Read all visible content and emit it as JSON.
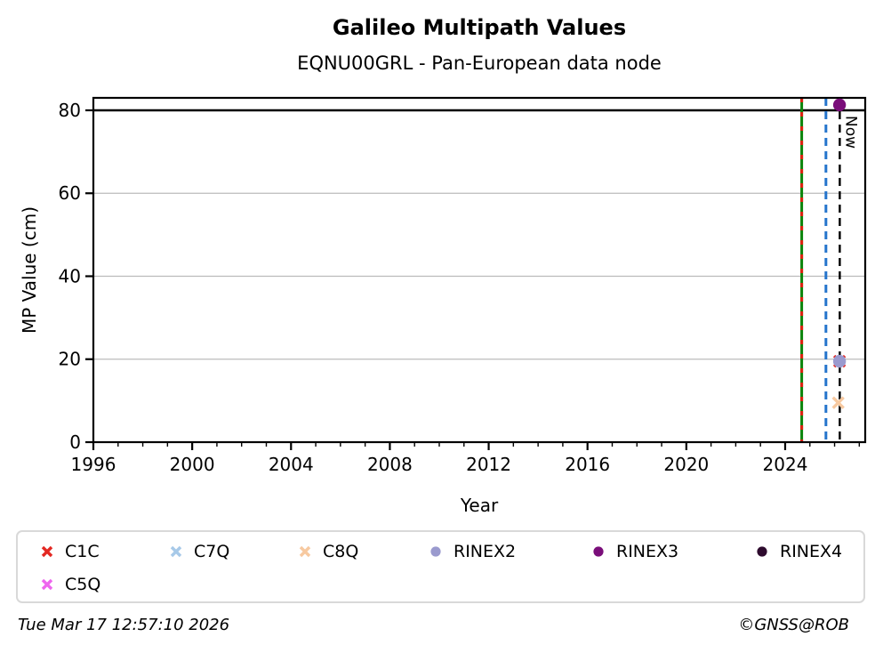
{
  "title": "Galileo Multipath Values",
  "subtitle": "EQNU00GRL - Pan-European data node",
  "footer": {
    "timestamp": "Tue Mar 17 12:57:10 2026",
    "copyright": "©GNSS@ROB"
  },
  "chart_data": {
    "type": "scatter",
    "title": "Galileo Multipath Values",
    "subtitle": "EQNU00GRL - Pan-European data node",
    "xlabel": "Year",
    "ylabel": "MP Value (cm)",
    "xlim": [
      1996,
      2027.24
    ],
    "ylim": [
      0,
      83
    ],
    "xticks_major": [
      1996,
      2000,
      2004,
      2008,
      2012,
      2016,
      2020,
      2024
    ],
    "xticks_minor_step": 1,
    "yticks": [
      0,
      20,
      40,
      60,
      80
    ],
    "grid": true,
    "grid_color": "#bbbbbb",
    "hlines": [
      {
        "y": 80,
        "color": "#000000",
        "style": "solid"
      }
    ],
    "vlines": [
      {
        "x": 2024.67,
        "color": "#0a840a",
        "overlay_color": "#e02010",
        "style": "solid-with-dashes",
        "label": ""
      },
      {
        "x": 2025.65,
        "color": "#2474cc",
        "overlay_color": null,
        "style": "dashed",
        "label": ""
      },
      {
        "x": 2026.21,
        "color": "#000000",
        "overlay_color": null,
        "style": "dashed",
        "label": "Now"
      }
    ],
    "series": [
      {
        "name": "C1C",
        "marker": "x",
        "color": "#e32822",
        "points": [
          {
            "x": 2026.2,
            "y": 19.5
          }
        ]
      },
      {
        "name": "C7Q",
        "marker": "x",
        "color": "#a7c9e8",
        "points": []
      },
      {
        "name": "C8Q",
        "marker": "x",
        "color": "#f7c9a0",
        "points": [
          {
            "x": 2026.15,
            "y": 9.5
          }
        ]
      },
      {
        "name": "RINEX2",
        "marker": "circle",
        "color": "#9a9ace",
        "points": [
          {
            "x": 2026.2,
            "y": 19.5
          }
        ]
      },
      {
        "name": "RINEX3",
        "marker": "circle",
        "color": "#7a0e7a",
        "points": [
          {
            "x": 2026.2,
            "y": 81.3
          }
        ]
      },
      {
        "name": "RINEX4",
        "marker": "circle",
        "color": "#2e0b2e",
        "points": []
      },
      {
        "name": "C5Q",
        "marker": "x",
        "color": "#ee66ee",
        "points": []
      }
    ],
    "legend": {
      "position": "bottom",
      "rows": [
        [
          "C1C",
          "C7Q",
          "C8Q",
          "RINEX2",
          "RINEX3",
          "RINEX4"
        ],
        [
          "C5Q"
        ]
      ]
    }
  }
}
